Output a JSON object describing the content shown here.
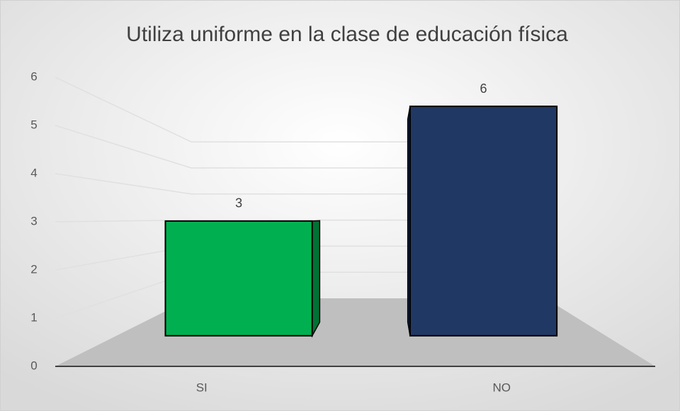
{
  "chart_data": {
    "type": "bar3d",
    "title": "Utiliza uniforme en la clase de educación física",
    "categories": [
      "SI",
      "NO"
    ],
    "values": [
      3,
      6
    ],
    "colors": [
      "#00b050",
      "#203864"
    ],
    "ylim": [
      0,
      6
    ],
    "yticks": [
      0,
      1,
      2,
      3,
      4,
      5,
      6
    ],
    "grid": true
  }
}
